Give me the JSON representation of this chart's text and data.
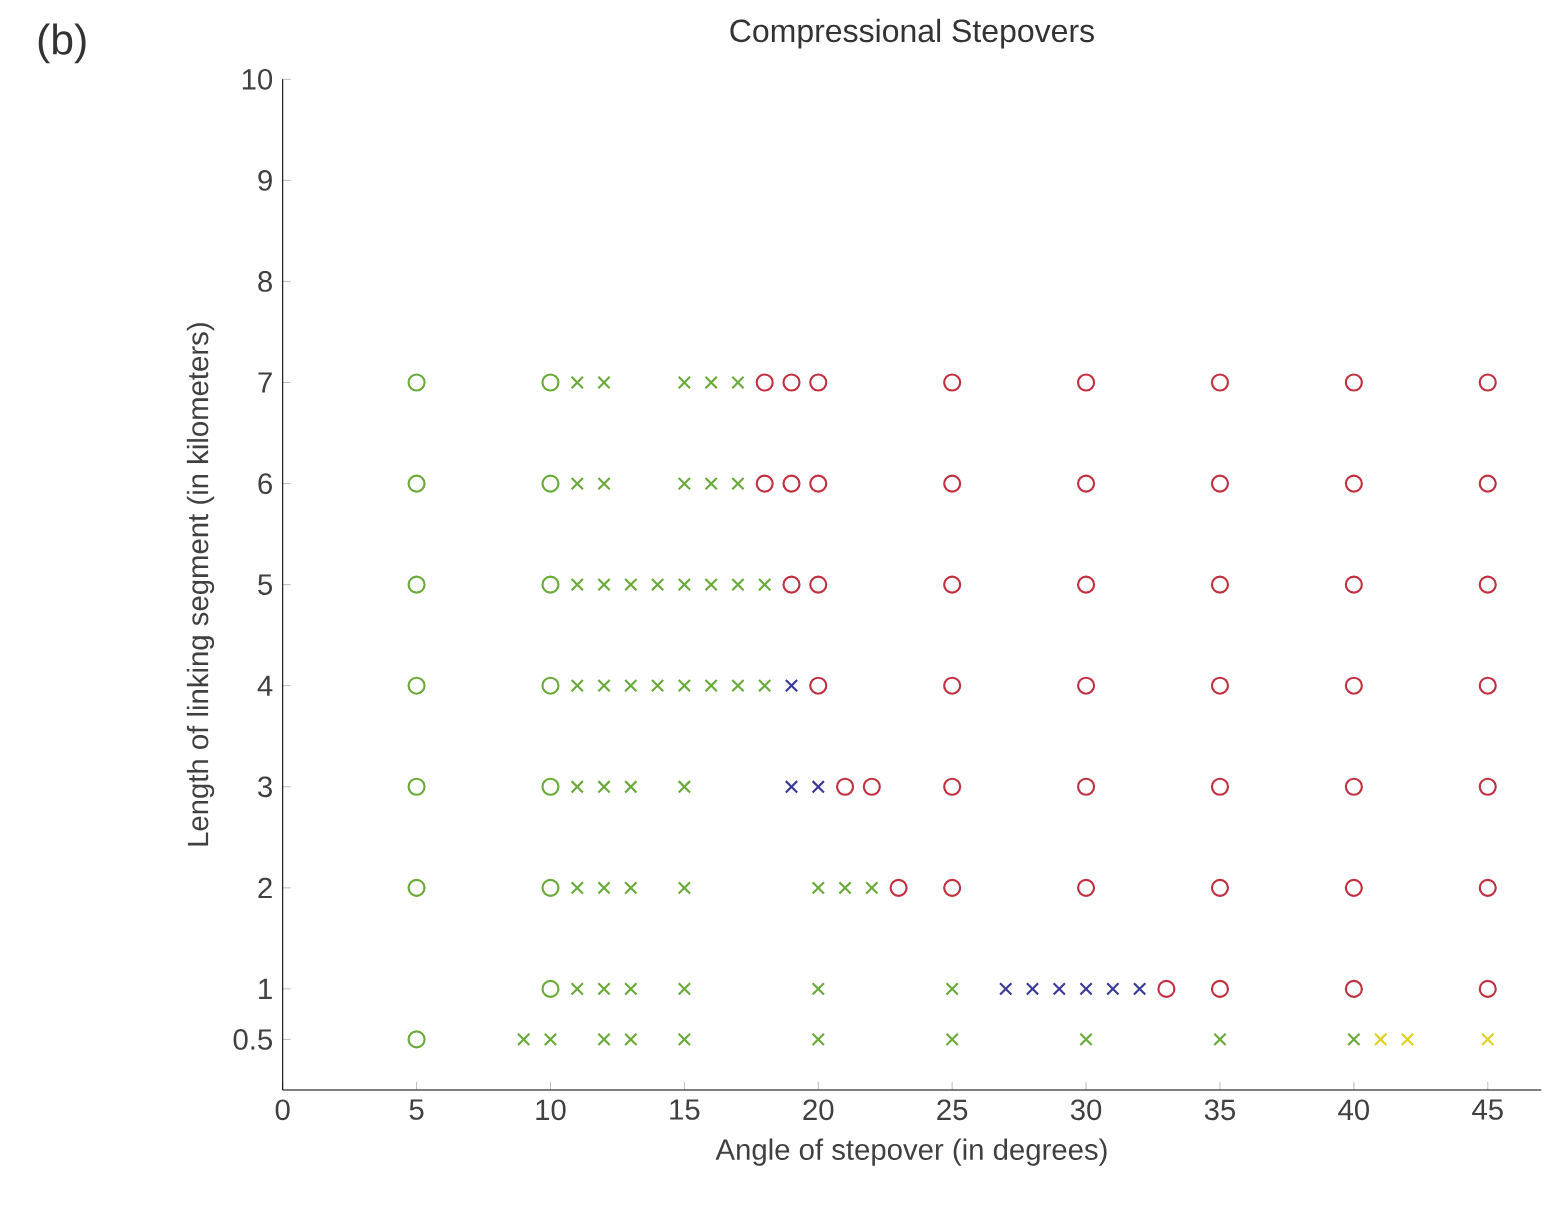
{
  "chart_data": {
    "type": "scatter",
    "title": "Compressional Stepovers",
    "xlabel": "Angle of stepover (in degrees)",
    "ylabel": "Length of linking segment (in kilometers)",
    "annotations": [
      "(b)"
    ],
    "xlim": [
      0,
      47
    ],
    "ylim": [
      0,
      10
    ],
    "xticks": [
      0,
      5,
      10,
      15,
      20,
      25,
      30,
      35,
      40,
      45
    ],
    "yticks": [
      0.5,
      1,
      2,
      3,
      4,
      5,
      6,
      7,
      8,
      9,
      10
    ],
    "grid": false,
    "series": [
      {
        "color": "#6aaa3a",
        "marker": "circle",
        "x": [
          5,
          5,
          5,
          5,
          5,
          5,
          5,
          10,
          10,
          10,
          10,
          10,
          10,
          10
        ],
        "values": [
          7,
          6,
          5,
          4,
          3,
          2,
          0.5,
          7,
          6,
          5,
          4,
          3,
          2,
          1
        ]
      },
      {
        "color": "#6aaa3a",
        "marker": "cross",
        "x": [
          11,
          12,
          15,
          16,
          17,
          11,
          12,
          15,
          16,
          17,
          11,
          12,
          13,
          14,
          15,
          16,
          17,
          18,
          11,
          12,
          13,
          14,
          15,
          16,
          17,
          18,
          11,
          12,
          13,
          15,
          11,
          12,
          13,
          15,
          20,
          21,
          22,
          11,
          12,
          13,
          15,
          20,
          25,
          9,
          10,
          12,
          13,
          15,
          20,
          25,
          30,
          35,
          40
        ],
        "values": [
          7,
          7,
          7,
          7,
          7,
          6,
          6,
          6,
          6,
          6,
          5,
          5,
          5,
          5,
          5,
          5,
          5,
          5,
          4,
          4,
          4,
          4,
          4,
          4,
          4,
          4,
          3,
          3,
          3,
          3,
          2,
          2,
          2,
          2,
          2,
          2,
          2,
          1,
          1,
          1,
          1,
          1,
          1,
          0.5,
          0.5,
          0.5,
          0.5,
          0.5,
          0.5,
          0.5,
          0.5,
          0.5,
          0.5
        ]
      },
      {
        "color": "#3a3a9a",
        "marker": "cross",
        "x": [
          19,
          19,
          20,
          27,
          28,
          29,
          30,
          31,
          32
        ],
        "values": [
          4,
          3,
          3,
          1,
          1,
          1,
          1,
          1,
          1
        ]
      },
      {
        "color": "#c03040",
        "marker": "circle",
        "x": [
          18,
          19,
          20,
          18,
          19,
          20,
          19,
          20,
          20,
          21,
          22,
          23,
          25,
          30,
          35,
          40,
          45,
          25,
          30,
          35,
          40,
          45,
          25,
          30,
          35,
          40,
          45,
          25,
          30,
          35,
          40,
          45,
          25,
          30,
          35,
          40,
          45,
          25,
          30,
          35,
          40,
          45,
          33,
          35,
          40,
          45
        ],
        "values": [
          7,
          7,
          7,
          6,
          6,
          6,
          5,
          5,
          4,
          3,
          3,
          2,
          7,
          7,
          7,
          7,
          7,
          6,
          6,
          6,
          6,
          6,
          5,
          5,
          5,
          5,
          5,
          4,
          4,
          4,
          4,
          4,
          3,
          3,
          3,
          3,
          3,
          2,
          2,
          2,
          2,
          2,
          1,
          1,
          1,
          1
        ]
      },
      {
        "color": "#e0d020",
        "marker": "cross",
        "x": [
          41,
          42,
          45
        ],
        "values": [
          0.5,
          0.5,
          0.5
        ]
      }
    ]
  }
}
